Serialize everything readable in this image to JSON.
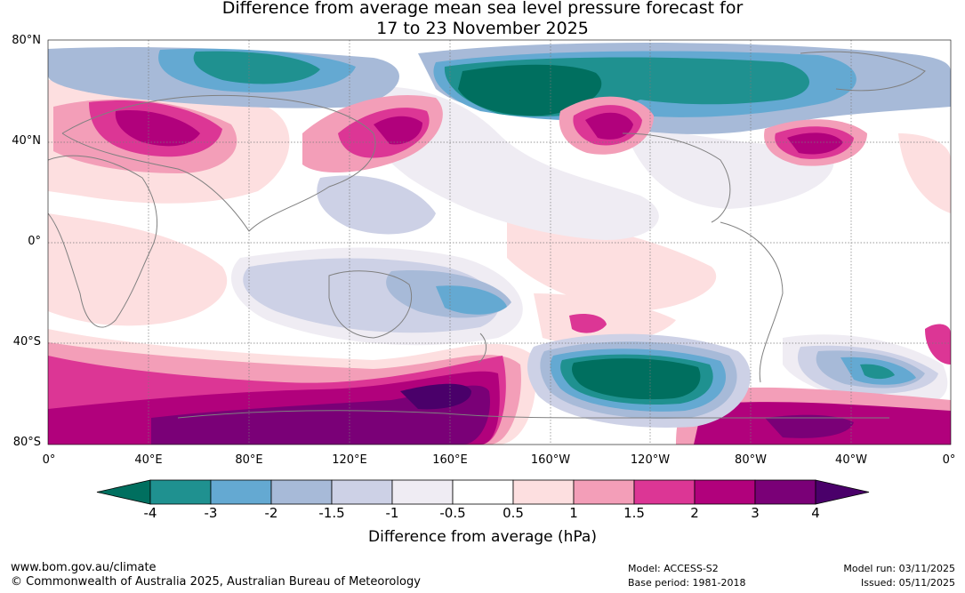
{
  "title_line1": "Difference from average mean sea level pressure forecast for",
  "title_line2": "17 to 23 November 2025",
  "lat_labels": [
    "80°N",
    "40°N",
    "0°",
    "40°S",
    "80°S"
  ],
  "lon_labels": [
    "0°",
    "40°E",
    "80°E",
    "120°E",
    "160°E",
    "160°W",
    "120°W",
    "80°W",
    "40°W",
    "0°"
  ],
  "colorbar": {
    "title": "Difference from average (hPa)",
    "tick_labels": [
      "-4",
      "-3",
      "-2",
      "-1.5",
      "-1",
      "-0.5",
      "0.5",
      "1",
      "1.5",
      "2",
      "3",
      "4"
    ],
    "colors": [
      "#006f5f",
      "#1f9190",
      "#64a9d2",
      "#a7bad8",
      "#cdd1e6",
      "#efecf3",
      "#ffffff",
      "#fddfe0",
      "#f39eb8",
      "#dc3695",
      "#b1017c",
      "#7a0077",
      "#4a006a"
    ]
  },
  "footer": {
    "url": "www.bom.gov.au/climate",
    "copyright": "© Commonwealth of Australia 2025, Australian Bureau of Meteorology",
    "model": "Model: ACCESS-S2",
    "base_period": "Base period: 1981-2018",
    "model_run": "Model run: 03/11/2025",
    "issued": "Issued: 05/11/2025"
  }
}
